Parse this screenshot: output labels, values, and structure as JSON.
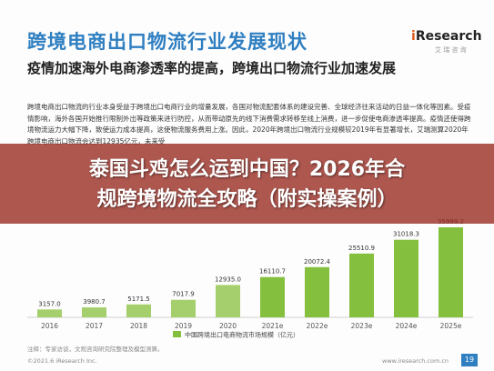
{
  "header": {
    "title": "跨境电商出口物流行业发展现状",
    "logo_prefix": "i",
    "logo_rest": "Research",
    "logo_sub": "艾 瑞 咨 询"
  },
  "subtitle": "疫情加速海外电商渗透率的提高，跨境出口物流行业加速发展",
  "body_text": "跨境电商出口物流的行业本身受益于跨境出口电商行业的增量发展，各国对物流配套体系的建设完善、全球经济往来活动的日益一体化等因素。受疫情影响，海外各国开始推行限制外出等政策来进行防控，从而带动原先的线下消费需求转移至线上消费，进一步促使电商渗透率提高。疫情还使得跨境物流运力大幅下降，致使运力成本提高，这使物流服务费用上涨。因此，2020年跨境出口物流行业规模较2019年有显著增长，艾瑞测算2020年跨境电商出口物流会达到12935亿元，未来受",
  "banner": {
    "line1": "泰国斗鸡怎么运到中国？2026年合",
    "line2": "规跨境物流全攻略（附实操案例）"
  },
  "footer": {
    "source": "注释：专家访谈，文观咨询研究院整理及模型测算。",
    "copyright": "©2021.6 iResearch Inc.",
    "site": "www.iresearch.com.cn",
    "page": "19"
  },
  "colors": {
    "bar_actual": "#a5cf6c",
    "bar_estimate": "#84bf3e",
    "title": "#2f7fc1",
    "banner": "#962820"
  },
  "chart_data": {
    "type": "bar",
    "title": "",
    "xlabel": "",
    "ylabel": "",
    "categories": [
      "2016",
      "2017",
      "2018",
      "2019",
      "2020",
      "2021e",
      "2022e",
      "2023e",
      "2024e",
      "2025e"
    ],
    "series": [
      {
        "name": "中国跨境出口电商物流市场规模（亿元）",
        "values": [
          3157.0,
          3980.7,
          5171.5,
          7017.9,
          12935.0,
          16110.7,
          20072.4,
          25510.9,
          31018.3,
          35999.2
        ]
      }
    ],
    "value_labels": [
      "3157.0",
      "3980.7",
      "5171.5",
      "7017.9",
      "12935.0",
      "16110.7",
      "20072.4",
      "25510.9",
      "31018.3",
      "35999.2"
    ],
    "ylim": [
      0,
      40000
    ],
    "grid": false,
    "legend": "bottom-left"
  }
}
